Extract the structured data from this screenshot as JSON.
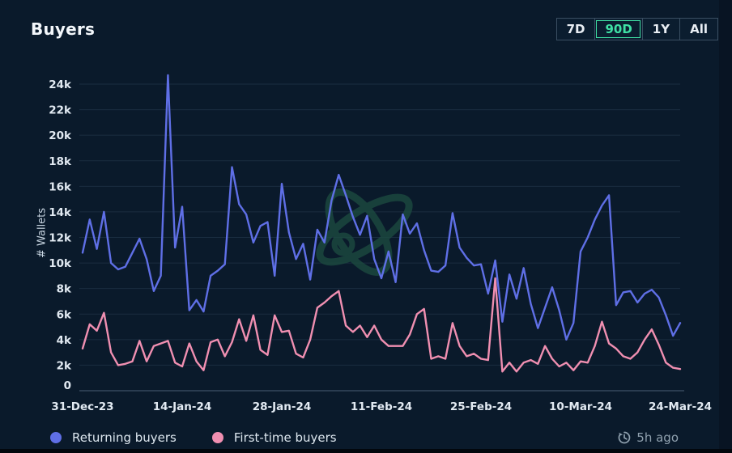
{
  "header": {
    "title": "Buyers",
    "ranges": [
      {
        "label": "7D",
        "active": false
      },
      {
        "label": "90D",
        "active": true
      },
      {
        "label": "1Y",
        "active": false
      },
      {
        "label": "All",
        "active": false
      }
    ]
  },
  "colors": {
    "background": "#0a1a2b",
    "accent_green": "#3fe0a4",
    "grid": "#1a2d40",
    "zero_axis": "#3d5266",
    "tick_text": "#e2eaf2",
    "watermark": "#1c4a40",
    "returning_blue": "#5f6fe6",
    "first_time_pink": "#f08fb1"
  },
  "chart_data": {
    "type": "line",
    "title": "Buyers",
    "ylabel": "# Wallets",
    "ylim": [
      0,
      25000
    ],
    "grid": true,
    "legend_position": "bottom",
    "y_ticks": [
      {
        "value": 0,
        "label": "0"
      },
      {
        "value": 2000,
        "label": "2k"
      },
      {
        "value": 4000,
        "label": "4k"
      },
      {
        "value": 6000,
        "label": "6k"
      },
      {
        "value": 8000,
        "label": "8k"
      },
      {
        "value": 10000,
        "label": "10k"
      },
      {
        "value": 12000,
        "label": "12k"
      },
      {
        "value": 14000,
        "label": "14k"
      },
      {
        "value": 16000,
        "label": "16k"
      },
      {
        "value": 18000,
        "label": "18k"
      },
      {
        "value": 20000,
        "label": "20k"
      },
      {
        "value": 22000,
        "label": "22k"
      },
      {
        "value": 24000,
        "label": "24k"
      }
    ],
    "x_unit": "day",
    "x_tick_positions": [
      0,
      14,
      28,
      42,
      56,
      70,
      84
    ],
    "x_tick_labels": [
      "31-Dec-23",
      "14-Jan-24",
      "28-Jan-24",
      "11-Feb-24",
      "25-Feb-24",
      "10-Mar-24",
      "24-Mar-24"
    ],
    "series": [
      {
        "name": "Returning buyers",
        "color": "#5f6fe6",
        "values": [
          10800,
          13400,
          11100,
          14000,
          10000,
          9500,
          9700,
          10800,
          11900,
          10300,
          7800,
          9000,
          24700,
          11200,
          14400,
          6300,
          7100,
          6200,
          9000,
          9400,
          9900,
          17500,
          14600,
          13800,
          11600,
          12900,
          13200,
          9000,
          16200,
          12400,
          10300,
          11500,
          8700,
          12600,
          11600,
          14900,
          16900,
          15300,
          13600,
          12200,
          13700,
          10300,
          8800,
          10900,
          8500,
          13800,
          12300,
          13100,
          11000,
          9400,
          9300,
          9800,
          13900,
          11200,
          10400,
          9800,
          9900,
          7600,
          10200,
          5400,
          9100,
          7200,
          9600,
          6800,
          4900,
          6500,
          8100,
          6300,
          4000,
          5300,
          10900,
          12000,
          13400,
          14500,
          15300,
          6700,
          7700,
          7800,
          6900,
          7600,
          7900,
          7300,
          5900,
          4300,
          5300
        ]
      },
      {
        "name": "First-time buyers",
        "color": "#f08fb1",
        "values": [
          3300,
          5200,
          4700,
          6100,
          3000,
          2000,
          2100,
          2300,
          3900,
          2300,
          3500,
          3700,
          3900,
          2200,
          1900,
          3700,
          2300,
          1600,
          3800,
          4000,
          2700,
          3800,
          5600,
          3900,
          5900,
          3200,
          2800,
          5900,
          4600,
          4700,
          2900,
          2600,
          4000,
          6500,
          6900,
          7400,
          7800,
          5100,
          4600,
          5100,
          4200,
          5100,
          4000,
          3500,
          3500,
          3500,
          4400,
          6000,
          6400,
          2500,
          2700,
          2500,
          5300,
          3500,
          2700,
          2900,
          2500,
          2400,
          8800,
          1500,
          2200,
          1500,
          2200,
          2400,
          2100,
          3500,
          2500,
          1900,
          2200,
          1600,
          2300,
          2200,
          3500,
          5400,
          3700,
          3300,
          2700,
          2500,
          3000,
          4000,
          4800,
          3600,
          2200,
          1800,
          1700
        ]
      }
    ]
  },
  "footer": {
    "updated": "5h ago"
  }
}
